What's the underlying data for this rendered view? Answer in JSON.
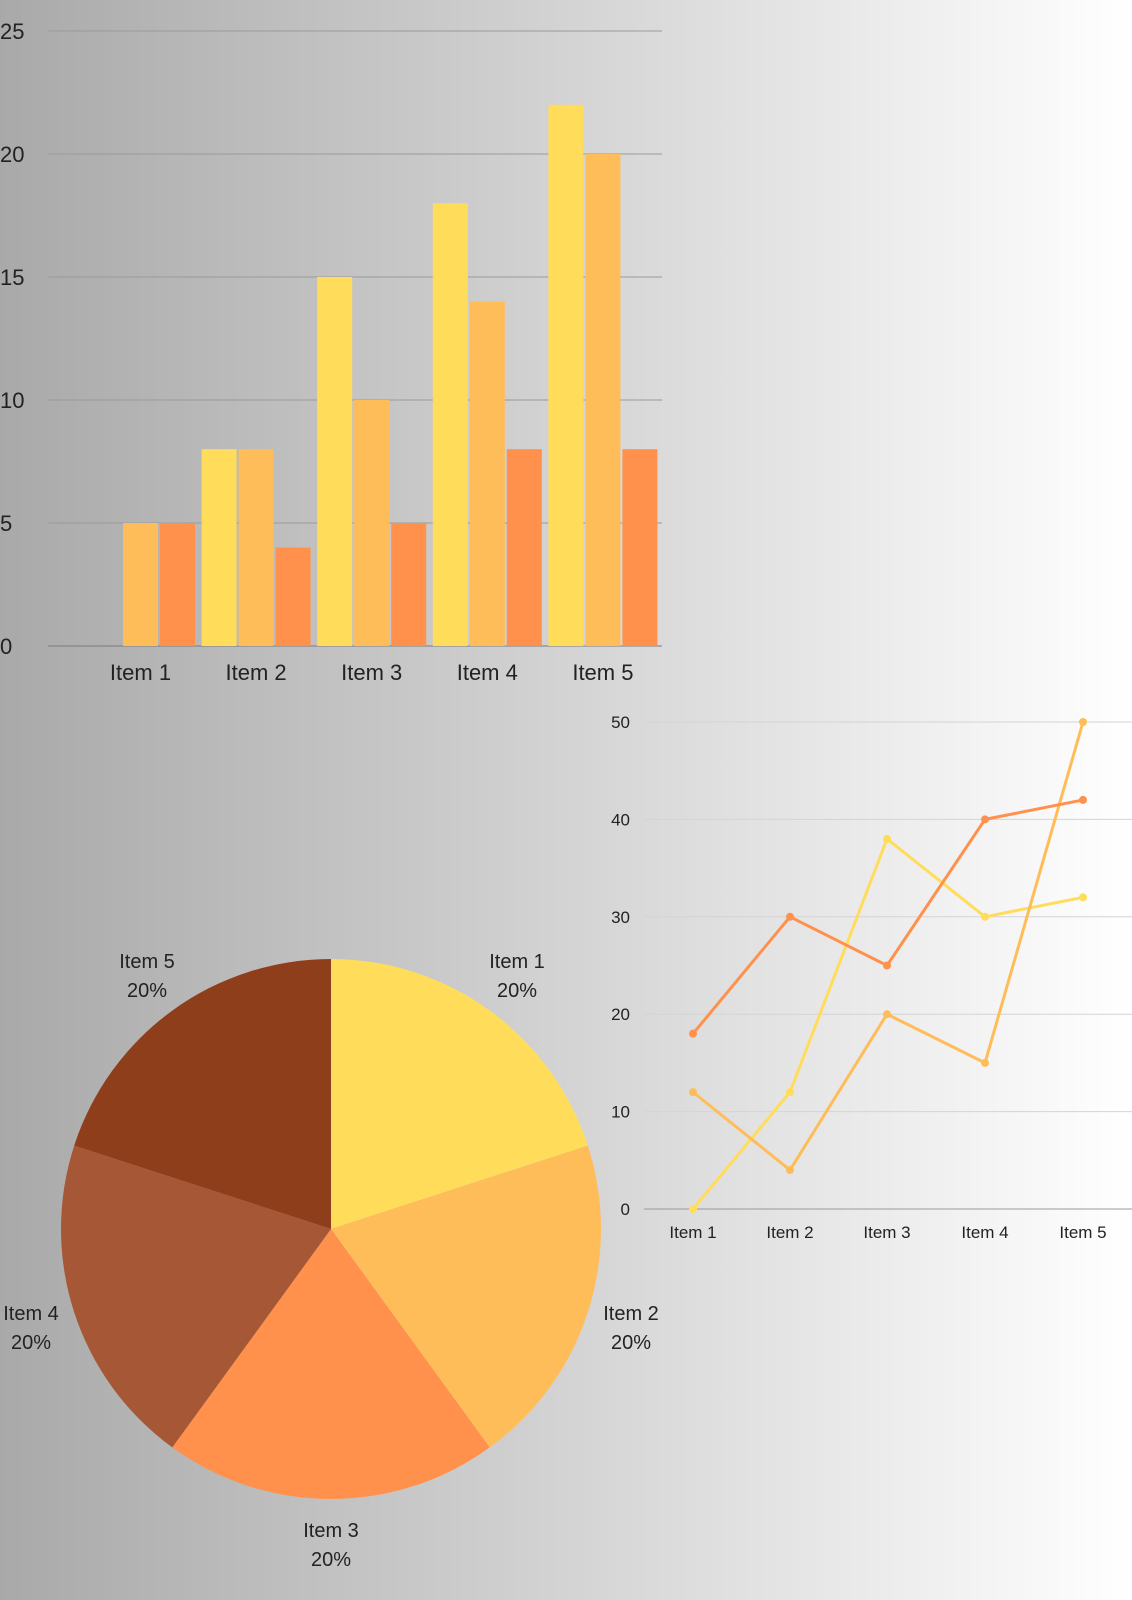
{
  "chart_data": [
    {
      "type": "bar",
      "categories": [
        "Item 1",
        "Item 2",
        "Item 3",
        "Item 4",
        "Item 5"
      ],
      "series": [
        {
          "values": [
            0,
            8,
            15,
            18,
            22
          ],
          "color": "#ffdd5a"
        },
        {
          "values": [
            5,
            8,
            10,
            14,
            20
          ],
          "color": "#ffbd59"
        },
        {
          "values": [
            5,
            4,
            5,
            8,
            8
          ],
          "color": "#ff914d"
        }
      ],
      "ylim": [
        0,
        25
      ],
      "yticks": [
        0,
        5,
        10,
        15,
        20,
        25
      ],
      "grid": true,
      "legend": "none"
    },
    {
      "type": "line",
      "categories": [
        "Item 1",
        "Item 2",
        "Item 3",
        "Item 4",
        "Item 5"
      ],
      "series": [
        {
          "values": [
            0,
            12,
            38,
            30,
            32
          ],
          "color": "#ffdd5a"
        },
        {
          "values": [
            12,
            4,
            20,
            15,
            50
          ],
          "color": "#ffbd59"
        },
        {
          "values": [
            18,
            30,
            25,
            40,
            42
          ],
          "color": "#ff914d"
        }
      ],
      "ylim": [
        0,
        50
      ],
      "yticks": [
        0,
        10,
        20,
        30,
        40,
        50
      ],
      "grid": true,
      "legend": "none"
    },
    {
      "type": "pie",
      "slices": [
        {
          "label": "Item 1",
          "value": 20,
          "percent": "20%",
          "color": "#ffdd5a"
        },
        {
          "label": "Item 2",
          "value": 20,
          "percent": "20%",
          "color": "#ffbd59"
        },
        {
          "label": "Item 3",
          "value": 20,
          "percent": "20%",
          "color": "#ff914d"
        },
        {
          "label": "Item 4",
          "value": 20,
          "percent": "20%",
          "color": "#a65735"
        },
        {
          "label": "Item 5",
          "value": 20,
          "percent": "20%",
          "color": "#8f3e1c"
        }
      ],
      "legend": "none"
    }
  ]
}
